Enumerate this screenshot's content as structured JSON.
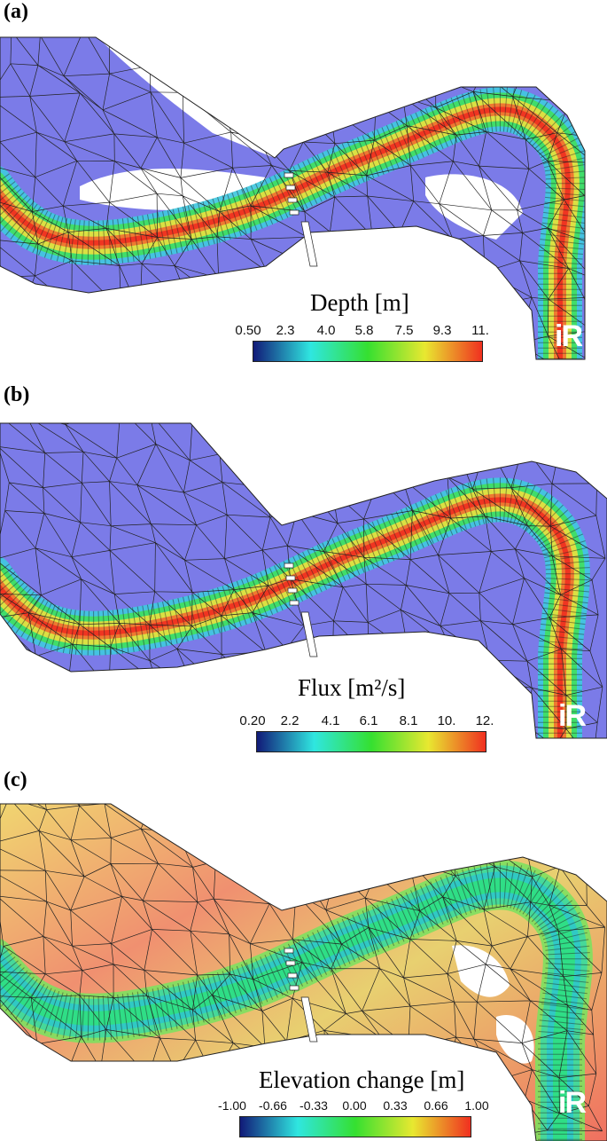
{
  "panels": [
    {
      "label": "(a)",
      "colorbar": {
        "title": "Depth [m]",
        "ticks": [
          "0.50",
          "2.3",
          "4.0",
          "5.8",
          "7.5",
          "9.3",
          "11."
        ],
        "colors": [
          "#111a78",
          "#2fe6e0",
          "#35e030",
          "#e8e830",
          "#f03020"
        ]
      },
      "fill": "#7b7be8",
      "logo": "iR"
    },
    {
      "label": "(b)",
      "colorbar": {
        "title": "Flux [m²/s]",
        "ticks": [
          "0.20",
          "2.2",
          "4.1",
          "6.1",
          "8.1",
          "10.",
          "12."
        ],
        "colors": [
          "#111a78",
          "#2fe6e0",
          "#35e030",
          "#e8e830",
          "#f03020"
        ]
      },
      "fill": "#7b7be8",
      "logo": "iR"
    },
    {
      "label": "(c)",
      "colorbar": {
        "title": "Elevation change [m]",
        "ticks": [
          "-1.00",
          "-0.66",
          "-0.33",
          "0.00",
          "0.33",
          "0.66",
          "1.00"
        ],
        "colors": [
          "#111a78",
          "#2fe6e0",
          "#35e030",
          "#e8e830",
          "#f03020"
        ]
      },
      "fill": "#f0a070",
      "logo": "iR"
    }
  ]
}
